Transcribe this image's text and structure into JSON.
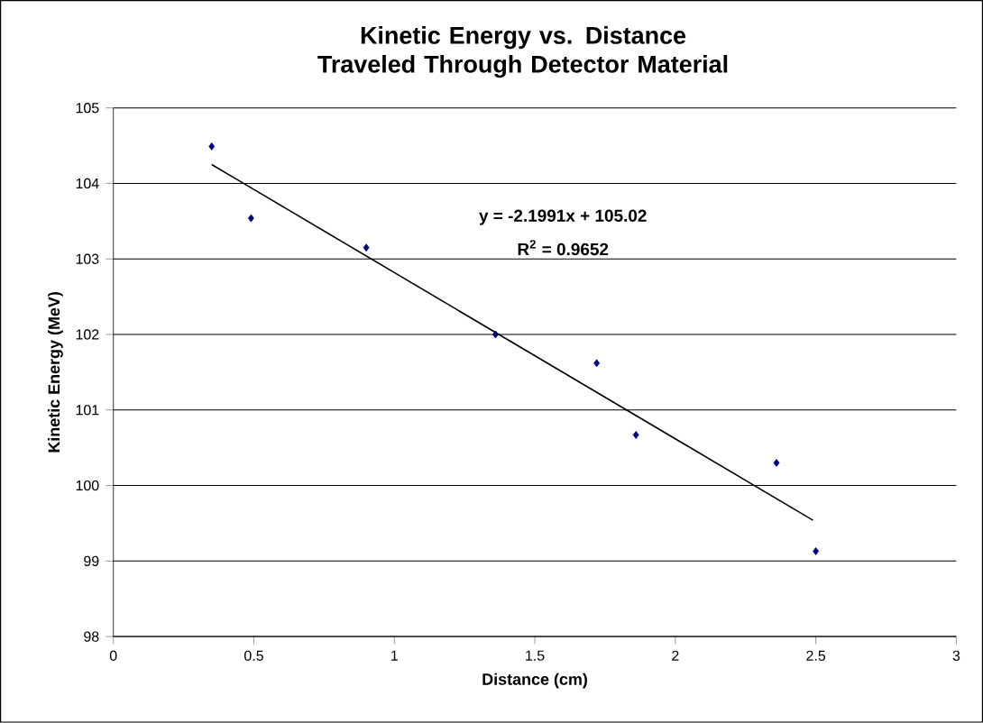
{
  "chart_data": {
    "type": "scatter",
    "title": "Kinetic Energy vs. Distance Traveled Through Detector Material",
    "xlabel": "Distance (cm)",
    "ylabel": "Kinetic Energy (MeV)",
    "series": [
      {
        "color": "#000080",
        "marker": "diamond",
        "x": [
          0.35,
          0.49,
          0.9,
          1.36,
          1.72,
          1.86,
          2.36,
          2.5
        ],
        "values": [
          104.49,
          103.54,
          103.15,
          102.0,
          101.62,
          100.67,
          100.3,
          99.13
        ]
      },
      {
        "type": "line",
        "color": "#000000",
        "marker": "none",
        "x": [
          0.35,
          2.49
        ],
        "values": [
          104.25,
          99.54
        ]
      }
    ],
    "annotations": [
      "y = -2.1991x + 105.02",
      "R$^{2}$ = 0.9652"
    ],
    "xlim": [
      0,
      3
    ],
    "ylim": [
      98,
      105
    ],
    "xticks": [
      0,
      0.5,
      1,
      1.5,
      2,
      2.5,
      3
    ],
    "yticks": [
      98,
      99,
      100,
      101,
      102,
      103,
      104,
      105
    ],
    "grid": "y"
  }
}
